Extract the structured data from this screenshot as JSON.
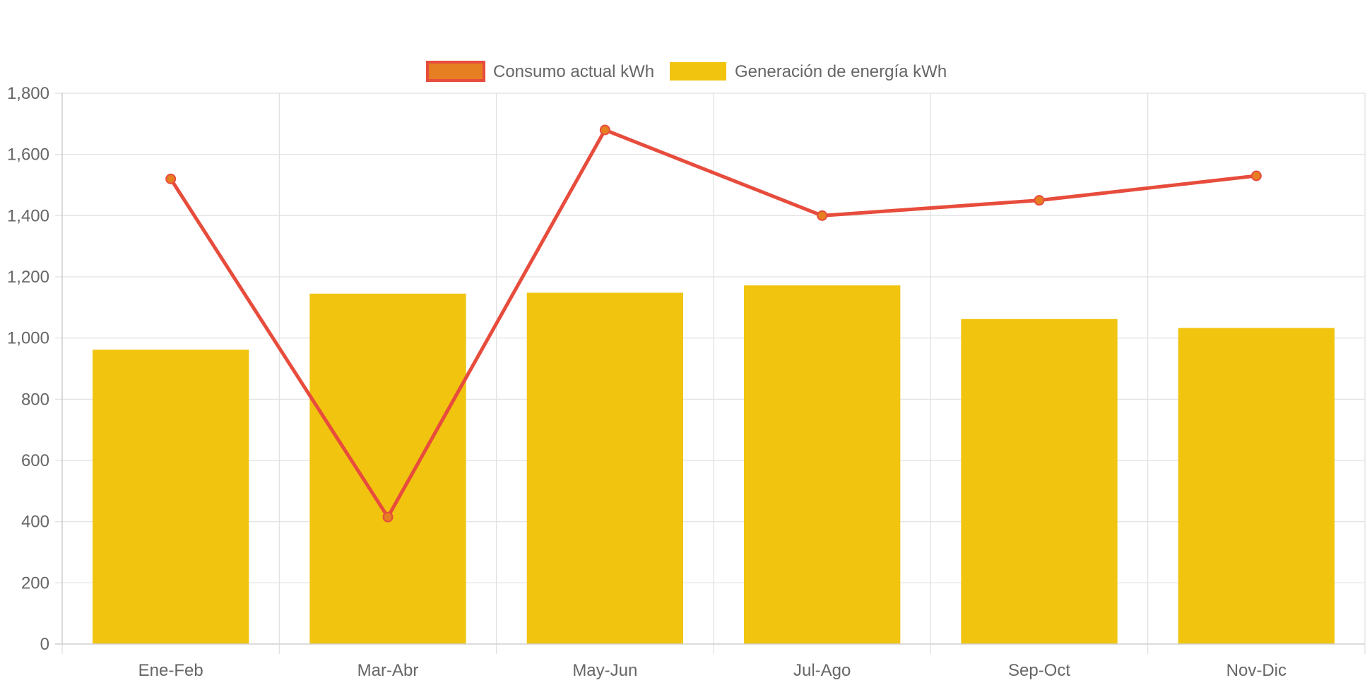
{
  "chart_data": {
    "type": "bar",
    "categories": [
      "Ene-Feb",
      "Mar-Abr",
      "May-Jun",
      "Jul-Ago",
      "Sep-Oct",
      "Nov-Dic"
    ],
    "series": [
      {
        "name": "Consumo actual kWh",
        "type": "line",
        "values": [
          1520,
          415,
          1680,
          1400,
          1450,
          1530
        ],
        "color": "#e74c3c",
        "point_color": "#e67e22"
      },
      {
        "name": "Generación de energía kWh",
        "type": "bar",
        "values": [
          962,
          1145,
          1148,
          1172,
          1062,
          1033
        ],
        "color": "#f1c40f"
      }
    ],
    "ylim": [
      0,
      1800
    ],
    "yticks": [
      0,
      200,
      400,
      600,
      800,
      1000,
      1200,
      1400,
      1600,
      1800
    ],
    "ytick_labels": [
      "0",
      "200",
      "400",
      "600",
      "800",
      "1,000",
      "1,200",
      "1,400",
      "1,600",
      "1,800"
    ],
    "title": "",
    "xlabel": "",
    "ylabel": "",
    "grid": true,
    "legend_position": "top-center"
  }
}
